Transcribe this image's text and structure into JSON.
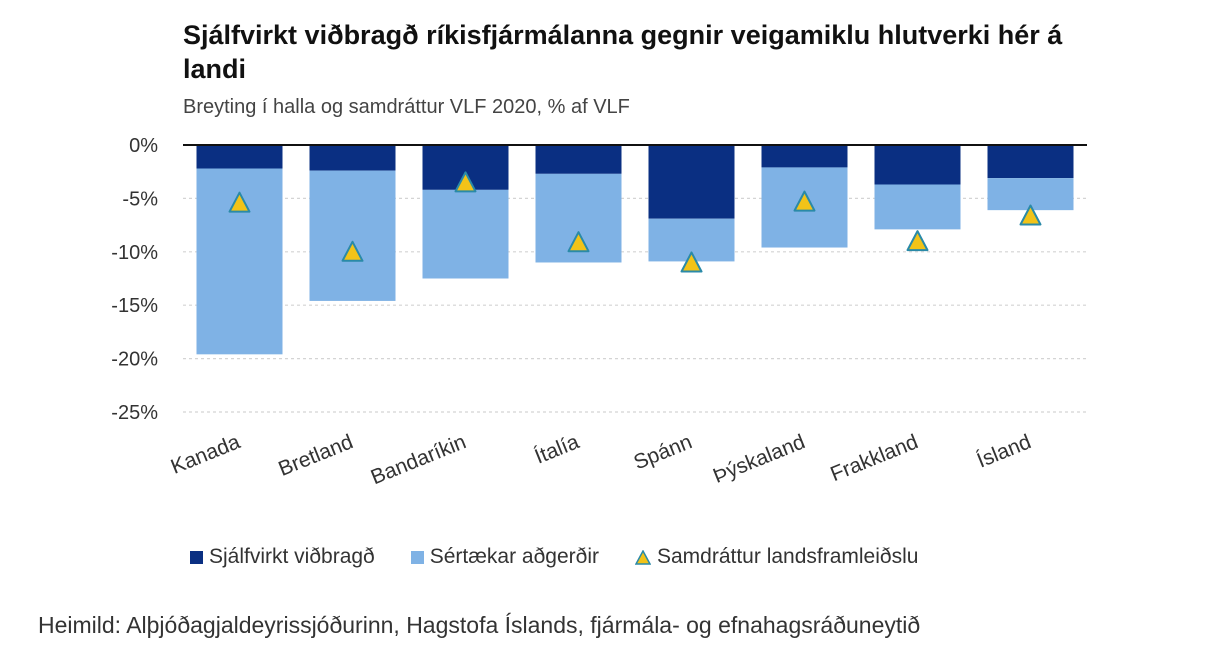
{
  "chart_data": {
    "type": "bar",
    "title": "Sjálfvirkt viðbragð ríkisfjármálanna gegnir veigamiklu hlutverki hér á landi",
    "subtitle": "Breyting í halla og samdráttur VLF 2020, % af VLF",
    "categories": [
      "Kanada",
      "Bretland",
      "Bandaríkin",
      "Ítalía",
      "Spánn",
      "Þýskaland",
      "Frakkland",
      "Ísland"
    ],
    "series": [
      {
        "name": "Sjálfvirkt viðbragð",
        "kind": "stacked-bar",
        "color": "#0a2f82",
        "values": [
          -2.2,
          -2.4,
          -4.2,
          -2.7,
          -6.9,
          -2.1,
          -3.7,
          -3.1
        ]
      },
      {
        "name": "Sértækar aðgerðir",
        "kind": "stacked-bar",
        "color": "#7fb2e5",
        "values": [
          -17.4,
          -12.2,
          -8.3,
          -8.3,
          -4.0,
          -7.5,
          -4.2,
          -3.0
        ]
      },
      {
        "name": "Samdráttur landsframleiðslu",
        "kind": "marker",
        "color": "#f2c318",
        "values": [
          -5.4,
          -10.0,
          -3.5,
          -9.1,
          -11.0,
          -5.3,
          -9.0,
          -6.6
        ]
      }
    ],
    "ylim": [
      -25,
      0
    ],
    "yticks": [
      0,
      -5,
      -10,
      -15,
      -20,
      -25
    ],
    "ytick_labels": [
      "0%",
      "-5%",
      "-10%",
      "-15%",
      "-20%",
      "-25%"
    ],
    "xlabel": "",
    "ylabel": "",
    "grid": true,
    "legend_position": "bottom"
  },
  "source": "Heimild: Alþjóðagjaldeyrissjóðurinn, Hagstofa Íslands, fjármála- og efnahagsráðuneytið"
}
